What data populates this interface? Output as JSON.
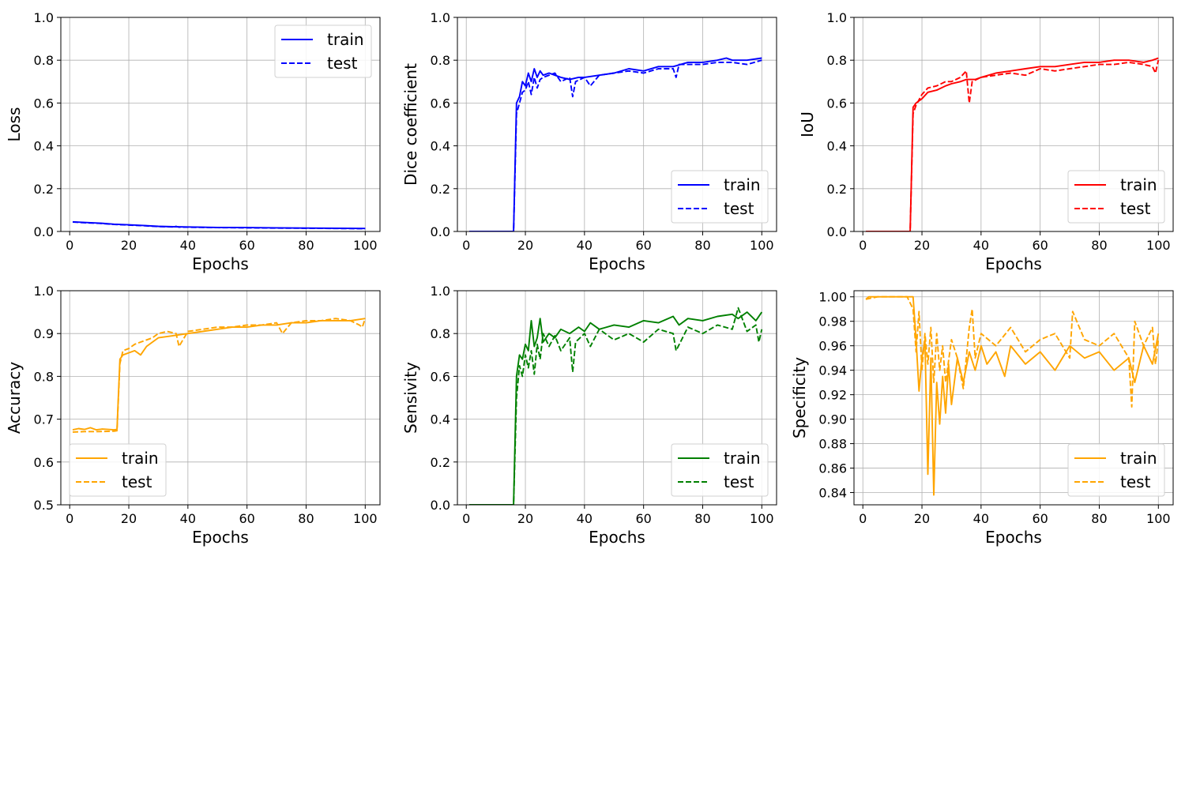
{
  "chart_data": [
    {
      "type": "line",
      "xlabel": "Epochs",
      "ylabel": "Loss",
      "xlim": [
        -3,
        105
      ],
      "ylim": [
        0.0,
        1.0
      ],
      "xticks": [
        0,
        20,
        40,
        60,
        80,
        100
      ],
      "xtick_labels": [
        "0",
        "20",
        "40",
        "60",
        "80",
        "100"
      ],
      "yticks": [
        0.0,
        0.2,
        0.4,
        0.6,
        0.8,
        1.0
      ],
      "ytick_labels": [
        "0.0",
        "0.2",
        "0.4",
        "0.6",
        "0.8",
        "1.0"
      ],
      "grid": true,
      "legend_position": "upper-right",
      "color": "#0000ff",
      "series": [
        {
          "name": "train",
          "style": "solid",
          "x": [
            1,
            5,
            10,
            15,
            20,
            25,
            30,
            35,
            40,
            50,
            60,
            70,
            80,
            90,
            100
          ],
          "values": [
            0.045,
            0.042,
            0.039,
            0.034,
            0.031,
            0.028,
            0.024,
            0.022,
            0.021,
            0.019,
            0.018,
            0.017,
            0.016,
            0.015,
            0.014
          ]
        },
        {
          "name": "test",
          "style": "dashed",
          "x": [
            1,
            5,
            10,
            15,
            20,
            25,
            30,
            35,
            36,
            37,
            40,
            50,
            60,
            70,
            80,
            90,
            100
          ],
          "values": [
            0.044,
            0.041,
            0.038,
            0.033,
            0.03,
            0.027,
            0.023,
            0.021,
            0.024,
            0.02,
            0.02,
            0.018,
            0.017,
            0.016,
            0.015,
            0.014,
            0.013
          ]
        }
      ]
    },
    {
      "type": "line",
      "xlabel": "Epochs",
      "ylabel": "Dice coefficient",
      "xlim": [
        -3,
        105
      ],
      "ylim": [
        0.0,
        1.0
      ],
      "xticks": [
        0,
        20,
        40,
        60,
        80,
        100
      ],
      "xtick_labels": [
        "0",
        "20",
        "40",
        "60",
        "80",
        "100"
      ],
      "yticks": [
        0.0,
        0.2,
        0.4,
        0.6,
        0.8,
        1.0
      ],
      "ytick_labels": [
        "0.0",
        "0.2",
        "0.4",
        "0.6",
        "0.8",
        "1.0"
      ],
      "grid": true,
      "legend_position": "lower-right",
      "color": "#0000ff",
      "series": [
        {
          "name": "train",
          "style": "solid",
          "x": [
            1,
            16,
            17,
            18,
            19,
            20,
            21,
            22,
            23,
            24,
            25,
            26,
            28,
            30,
            32,
            35,
            38,
            40,
            45,
            50,
            55,
            60,
            65,
            70,
            75,
            80,
            85,
            88,
            90,
            95,
            100
          ],
          "values": [
            0.0,
            0.0,
            0.6,
            0.63,
            0.7,
            0.68,
            0.74,
            0.7,
            0.76,
            0.72,
            0.75,
            0.73,
            0.74,
            0.73,
            0.72,
            0.71,
            0.72,
            0.72,
            0.73,
            0.74,
            0.76,
            0.75,
            0.77,
            0.77,
            0.79,
            0.79,
            0.8,
            0.81,
            0.8,
            0.8,
            0.81
          ]
        },
        {
          "name": "test",
          "style": "dashed",
          "x": [
            1,
            16,
            17,
            18,
            19,
            20,
            21,
            22,
            23,
            24,
            25,
            26,
            28,
            30,
            32,
            35,
            36,
            37,
            40,
            42,
            45,
            50,
            55,
            60,
            65,
            70,
            71,
            72,
            75,
            80,
            85,
            90,
            95,
            100
          ],
          "values": [
            0.0,
            0.0,
            0.55,
            0.6,
            0.65,
            0.66,
            0.7,
            0.64,
            0.72,
            0.67,
            0.71,
            0.72,
            0.73,
            0.74,
            0.7,
            0.72,
            0.63,
            0.7,
            0.72,
            0.68,
            0.73,
            0.74,
            0.75,
            0.74,
            0.76,
            0.76,
            0.72,
            0.78,
            0.78,
            0.78,
            0.79,
            0.79,
            0.78,
            0.8
          ]
        }
      ]
    },
    {
      "type": "line",
      "xlabel": "Epochs",
      "ylabel": "IoU",
      "xlim": [
        -3,
        105
      ],
      "ylim": [
        0.0,
        1.0
      ],
      "xticks": [
        0,
        20,
        40,
        60,
        80,
        100
      ],
      "xtick_labels": [
        "0",
        "20",
        "40",
        "60",
        "80",
        "100"
      ],
      "yticks": [
        0.0,
        0.2,
        0.4,
        0.6,
        0.8,
        1.0
      ],
      "ytick_labels": [
        "0.0",
        "0.2",
        "0.4",
        "0.6",
        "0.8",
        "1.0"
      ],
      "grid": true,
      "legend_position": "lower-right",
      "color": "#ff0000",
      "series": [
        {
          "name": "train",
          "style": "solid",
          "x": [
            1,
            16,
            17,
            18,
            20,
            22,
            25,
            28,
            30,
            33,
            35,
            38,
            40,
            45,
            50,
            55,
            60,
            65,
            70,
            75,
            80,
            85,
            90,
            95,
            98,
            100
          ],
          "values": [
            0.0,
            0.0,
            0.58,
            0.6,
            0.62,
            0.65,
            0.66,
            0.68,
            0.69,
            0.7,
            0.71,
            0.71,
            0.72,
            0.74,
            0.75,
            0.76,
            0.77,
            0.77,
            0.78,
            0.79,
            0.79,
            0.8,
            0.8,
            0.79,
            0.8,
            0.81
          ]
        },
        {
          "name": "test",
          "style": "dashed",
          "x": [
            1,
            16,
            17,
            18,
            20,
            22,
            25,
            28,
            30,
            33,
            35,
            36,
            37,
            40,
            45,
            50,
            55,
            60,
            65,
            70,
            75,
            80,
            85,
            90,
            95,
            98,
            99,
            100
          ],
          "values": [
            0.0,
            0.0,
            0.55,
            0.59,
            0.64,
            0.67,
            0.68,
            0.7,
            0.7,
            0.72,
            0.75,
            0.6,
            0.7,
            0.72,
            0.73,
            0.74,
            0.73,
            0.76,
            0.75,
            0.76,
            0.77,
            0.78,
            0.78,
            0.79,
            0.78,
            0.77,
            0.74,
            0.8
          ]
        }
      ]
    },
    {
      "type": "line",
      "xlabel": "Epochs",
      "ylabel": "Accuracy",
      "xlim": [
        -3,
        105
      ],
      "ylim": [
        0.5,
        1.0
      ],
      "xticks": [
        0,
        20,
        40,
        60,
        80,
        100
      ],
      "xtick_labels": [
        "0",
        "20",
        "40",
        "60",
        "80",
        "100"
      ],
      "yticks": [
        0.5,
        0.6,
        0.7,
        0.8,
        0.9,
        1.0
      ],
      "ytick_labels": [
        "0.5",
        "0.6",
        "0.7",
        "0.8",
        "0.9",
        "1.0"
      ],
      "grid": true,
      "legend_position": "lower-left",
      "color": "#ffa500",
      "series": [
        {
          "name": "train",
          "style": "solid",
          "x": [
            1,
            3,
            5,
            7,
            9,
            11,
            13,
            15,
            16,
            17,
            18,
            20,
            22,
            24,
            26,
            28,
            30,
            35,
            40,
            45,
            50,
            55,
            60,
            65,
            70,
            75,
            80,
            85,
            90,
            95,
            100
          ],
          "values": [
            0.675,
            0.678,
            0.676,
            0.68,
            0.675,
            0.677,
            0.676,
            0.675,
            0.676,
            0.84,
            0.85,
            0.855,
            0.86,
            0.85,
            0.87,
            0.88,
            0.89,
            0.895,
            0.9,
            0.905,
            0.91,
            0.915,
            0.915,
            0.92,
            0.92,
            0.925,
            0.925,
            0.93,
            0.93,
            0.93,
            0.935
          ]
        },
        {
          "name": "test",
          "style": "dashed",
          "x": [
            1,
            5,
            10,
            15,
            16,
            17,
            18,
            20,
            22,
            24,
            26,
            28,
            30,
            33,
            36,
            37,
            40,
            45,
            50,
            55,
            60,
            65,
            70,
            72,
            75,
            80,
            85,
            90,
            95,
            98,
            99,
            100
          ],
          "values": [
            0.67,
            0.671,
            0.671,
            0.672,
            0.673,
            0.83,
            0.86,
            0.865,
            0.875,
            0.88,
            0.885,
            0.89,
            0.9,
            0.905,
            0.9,
            0.87,
            0.905,
            0.91,
            0.915,
            0.915,
            0.92,
            0.92,
            0.925,
            0.9,
            0.925,
            0.93,
            0.93,
            0.935,
            0.93,
            0.92,
            0.915,
            0.935
          ]
        }
      ]
    },
    {
      "type": "line",
      "xlabel": "Epochs",
      "ylabel": "Sensivity",
      "xlim": [
        -3,
        105
      ],
      "ylim": [
        0.0,
        1.0
      ],
      "xticks": [
        0,
        20,
        40,
        60,
        80,
        100
      ],
      "xtick_labels": [
        "0",
        "20",
        "40",
        "60",
        "80",
        "100"
      ],
      "yticks": [
        0.0,
        0.2,
        0.4,
        0.6,
        0.8,
        1.0
      ],
      "ytick_labels": [
        "0.0",
        "0.2",
        "0.4",
        "0.6",
        "0.8",
        "1.0"
      ],
      "grid": true,
      "legend_position": "lower-right",
      "color": "#008000",
      "series": [
        {
          "name": "train",
          "style": "solid",
          "x": [
            1,
            16,
            17,
            18,
            19,
            20,
            21,
            22,
            23,
            24,
            25,
            26,
            28,
            30,
            32,
            35,
            38,
            40,
            42,
            45,
            50,
            55,
            60,
            65,
            70,
            72,
            75,
            80,
            85,
            90,
            92,
            95,
            98,
            100
          ],
          "values": [
            0.0,
            0.0,
            0.6,
            0.7,
            0.68,
            0.75,
            0.72,
            0.86,
            0.74,
            0.78,
            0.87,
            0.76,
            0.8,
            0.78,
            0.82,
            0.8,
            0.83,
            0.81,
            0.85,
            0.82,
            0.84,
            0.83,
            0.86,
            0.85,
            0.88,
            0.84,
            0.87,
            0.86,
            0.88,
            0.89,
            0.87,
            0.9,
            0.86,
            0.9
          ]
        },
        {
          "name": "test",
          "style": "dashed",
          "x": [
            1,
            16,
            17,
            18,
            19,
            20,
            21,
            22,
            23,
            24,
            25,
            26,
            28,
            30,
            32,
            35,
            36,
            37,
            40,
            42,
            45,
            50,
            55,
            60,
            65,
            70,
            71,
            75,
            80,
            85,
            90,
            92,
            95,
            98,
            99,
            100
          ],
          "values": [
            0.0,
            0.0,
            0.5,
            0.65,
            0.6,
            0.7,
            0.64,
            0.72,
            0.61,
            0.75,
            0.68,
            0.8,
            0.74,
            0.79,
            0.72,
            0.78,
            0.62,
            0.76,
            0.8,
            0.74,
            0.82,
            0.77,
            0.8,
            0.76,
            0.82,
            0.8,
            0.72,
            0.83,
            0.8,
            0.84,
            0.82,
            0.92,
            0.81,
            0.84,
            0.76,
            0.82
          ]
        }
      ]
    },
    {
      "type": "line",
      "xlabel": "Epochs",
      "ylabel": "Specificity",
      "xlim": [
        -3,
        105
      ],
      "ylim": [
        0.83,
        1.005
      ],
      "xticks": [
        0,
        20,
        40,
        60,
        80,
        100
      ],
      "xtick_labels": [
        "0",
        "20",
        "40",
        "60",
        "80",
        "100"
      ],
      "yticks": [
        0.84,
        0.86,
        0.88,
        0.9,
        0.92,
        0.94,
        0.96,
        0.98,
        1.0
      ],
      "ytick_labels": [
        "0.84",
        "0.86",
        "0.88",
        "0.90",
        "0.92",
        "0.94",
        "0.96",
        "0.98",
        "1.00"
      ],
      "grid": true,
      "legend_position": "lower-right",
      "color": "#ffa500",
      "series": [
        {
          "name": "train",
          "style": "solid",
          "x": [
            1,
            2,
            5,
            10,
            15,
            17,
            18,
            19,
            20,
            21,
            22,
            23,
            24,
            25,
            26,
            27,
            28,
            29,
            30,
            32,
            34,
            36,
            38,
            40,
            42,
            45,
            48,
            50,
            55,
            60,
            65,
            70,
            75,
            80,
            85,
            90,
            92,
            95,
            98,
            100
          ],
          "values": [
            0.998,
            1.0,
            1.0,
            1.0,
            1.0,
            1.0,
            0.965,
            0.923,
            0.95,
            0.965,
            0.855,
            0.95,
            0.838,
            0.93,
            0.896,
            0.935,
            0.905,
            0.945,
            0.912,
            0.95,
            0.93,
            0.955,
            0.94,
            0.96,
            0.945,
            0.955,
            0.935,
            0.96,
            0.945,
            0.955,
            0.94,
            0.96,
            0.95,
            0.955,
            0.94,
            0.95,
            0.93,
            0.96,
            0.945,
            0.97
          ]
        },
        {
          "name": "test",
          "style": "dashed",
          "x": [
            1,
            5,
            10,
            15,
            17,
            18,
            19,
            20,
            21,
            22,
            23,
            24,
            25,
            26,
            27,
            28,
            30,
            32,
            34,
            36,
            37,
            38,
            40,
            45,
            50,
            55,
            60,
            65,
            70,
            71,
            75,
            80,
            85,
            90,
            91,
            92,
            95,
            98,
            99,
            100
          ],
          "values": [
            0.998,
            1.0,
            1.0,
            1.0,
            0.99,
            0.955,
            0.988,
            0.94,
            0.97,
            0.945,
            0.975,
            0.93,
            0.97,
            0.94,
            0.96,
            0.93,
            0.965,
            0.95,
            0.925,
            0.975,
            0.99,
            0.95,
            0.97,
            0.96,
            0.975,
            0.955,
            0.965,
            0.97,
            0.95,
            0.988,
            0.965,
            0.96,
            0.97,
            0.95,
            0.91,
            0.98,
            0.96,
            0.975,
            0.945,
            0.965
          ]
        }
      ]
    }
  ]
}
